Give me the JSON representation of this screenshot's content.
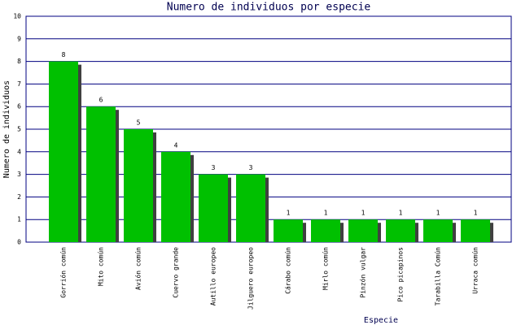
{
  "chart_data": {
    "type": "bar",
    "title": "Numero de individuos por especie",
    "x_label": "Especie",
    "y_label": "Numero de individuos",
    "categories": [
      "Gorrión común",
      "Mito común",
      "Avión común",
      "Cuervo grande",
      "Autillo europeo",
      "Jilguero europeo",
      "Cárabo común",
      "Mirlo común",
      "Pinzón vulgar",
      "Pico picapinos",
      "Tarabilla Común",
      "Urraca común"
    ],
    "values": [
      8,
      6,
      5,
      4,
      3,
      3,
      1,
      1,
      1,
      1,
      1,
      1
    ],
    "color": "#00c000",
    "shadow_color": "#404040",
    "ylim": [
      0,
      10
    ],
    "yticks": [
      0,
      1,
      2,
      3,
      4,
      5,
      6,
      7,
      8,
      9,
      10
    ],
    "grid": true
  }
}
